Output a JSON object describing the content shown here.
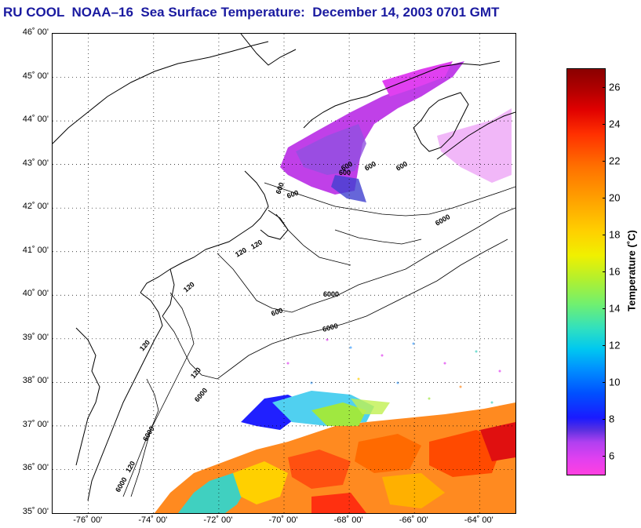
{
  "title": "RU COOL  NOAA–16  Sea Surface Temperature:  December 14, 2003 0701 GMT",
  "map": {
    "lat_labels": [
      "46˚ 00'",
      "45˚ 00'",
      "44˚ 00'",
      "43˚ 00'",
      "42˚ 00'",
      "41˚ 00'",
      "40˚ 00'",
      "39˚ 00'",
      "38˚ 00'",
      "37˚ 00'",
      "36˚ 00'",
      "35˚ 00'"
    ],
    "lon_labels": [
      "-76˚ 00'",
      "-74˚ 00'",
      "-72˚ 00'",
      "-70˚ 00'",
      "-68˚ 00'",
      "-66˚ 00'",
      "-64˚ 00'"
    ],
    "lat_range": [
      35,
      46
    ],
    "lon_range": [
      -77.1,
      -62.9
    ],
    "contour_labels": [
      "600",
      "600",
      "600",
      "600",
      "6000",
      "6000",
      "600",
      "6000",
      "120",
      "120",
      "120",
      "120",
      "6000",
      "120",
      "600",
      "6000",
      "120",
      "6000",
      "120",
      "600"
    ]
  },
  "colorbar": {
    "label": "Temperature (˚C)",
    "ticks": [
      "26",
      "24",
      "22",
      "20",
      "18",
      "16",
      "14",
      "12",
      "10",
      "8",
      "6"
    ],
    "tick_values": [
      26,
      24,
      22,
      20,
      18,
      16,
      14,
      12,
      10,
      8,
      6
    ],
    "range": [
      5,
      27
    ],
    "colors": {
      "cold": "#ff40e0",
      "mid": "#00c8f0",
      "warm": "#ff7000",
      "hot": "#8a0000"
    }
  }
}
